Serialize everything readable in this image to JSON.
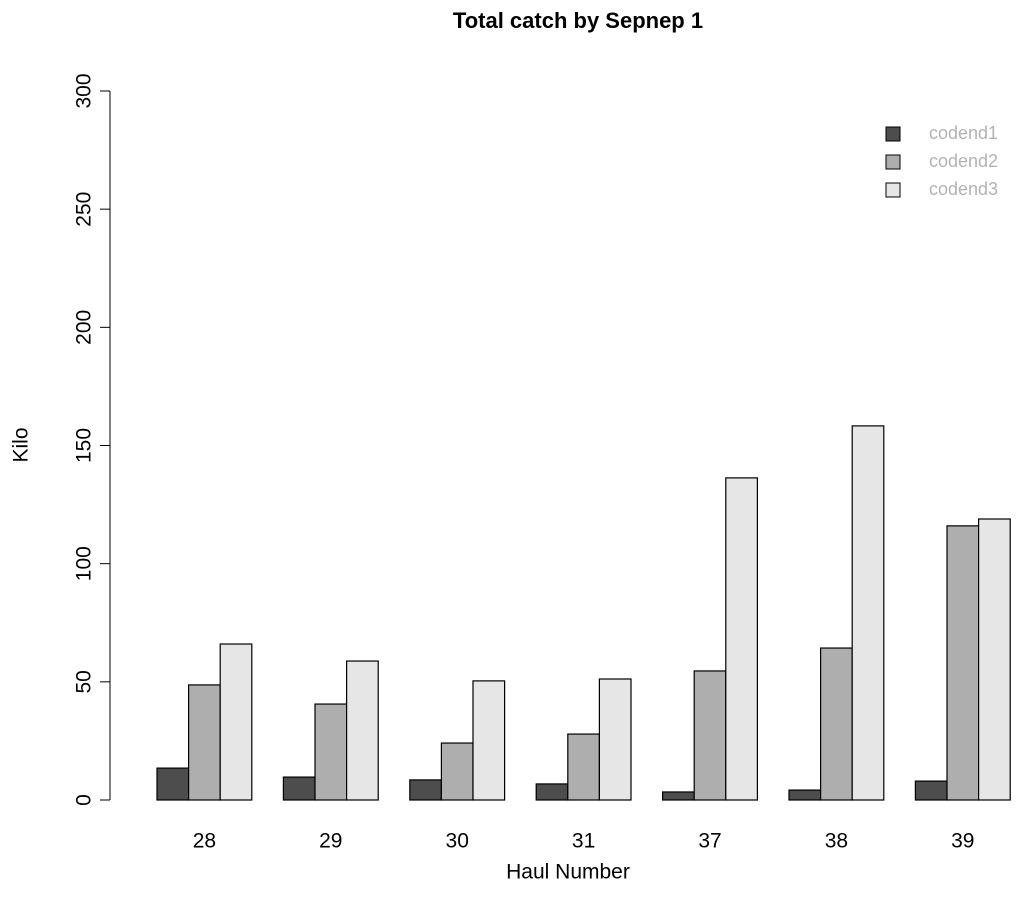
{
  "chart_data": {
    "type": "bar",
    "title": "Total catch by Sepnep 1",
    "x_label": "Haul Number",
    "y_label": "Kilo",
    "categories": [
      "28",
      "29",
      "30",
      "31",
      "37",
      "38",
      "39"
    ],
    "series": [
      {
        "name": "codend1",
        "color": "#4d4d4d",
        "values": [
          13.5,
          9.7,
          8.5,
          6.8,
          3.4,
          4.2,
          8.0
        ]
      },
      {
        "name": "codend2",
        "color": "#aeaeae",
        "values": [
          48.7,
          40.6,
          24.1,
          27.9,
          54.6,
          64.3,
          116
        ]
      },
      {
        "name": "codend3",
        "color": "#e6e6e6",
        "values": [
          66.0,
          58.8,
          50.4,
          51.2,
          136.3,
          158.3,
          118.9
        ]
      }
    ],
    "ylim": [
      0,
      300
    ],
    "yticks": [
      0,
      50,
      100,
      150,
      200,
      250,
      300
    ],
    "legend": "top-right"
  }
}
